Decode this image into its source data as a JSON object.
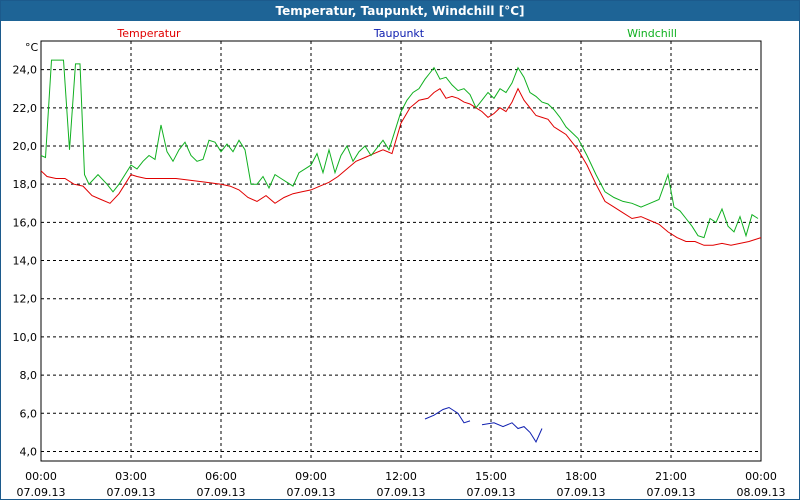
{
  "window": {
    "title": "Temperatur, Taupunkt, Windchill [°C]"
  },
  "colors": {
    "temperatur": "#e00000",
    "taupunkt": "#1020b0",
    "windchill": "#10b020",
    "grid": "#000000",
    "titlebar": "#1e6496"
  },
  "chart_data": {
    "type": "line",
    "title": "Temperatur, Taupunkt, Windchill [°C]",
    "ylabel": "°C",
    "xlabel": "",
    "ylim": [
      3.5,
      25.5
    ],
    "xlim": [
      0,
      24
    ],
    "grid": true,
    "yticks": [
      {
        "value": 4,
        "label": "4,0"
      },
      {
        "value": 6,
        "label": "6,0"
      },
      {
        "value": 8,
        "label": "8,0"
      },
      {
        "value": 10,
        "label": "10,0"
      },
      {
        "value": 12,
        "label": "12,0"
      },
      {
        "value": 14,
        "label": "14,0"
      },
      {
        "value": 16,
        "label": "16,0"
      },
      {
        "value": 18,
        "label": "18,0"
      },
      {
        "value": 20,
        "label": "20,0"
      },
      {
        "value": 22,
        "label": "22,0"
      },
      {
        "value": 24,
        "label": "24,0"
      }
    ],
    "xticks": [
      {
        "value": 0,
        "time": "00:00",
        "date": "07.09.13"
      },
      {
        "value": 3,
        "time": "03:00",
        "date": "07.09.13"
      },
      {
        "value": 6,
        "time": "06:00",
        "date": "07.09.13"
      },
      {
        "value": 9,
        "time": "09:00",
        "date": "07.09.13"
      },
      {
        "value": 12,
        "time": "12:00",
        "date": "07.09.13"
      },
      {
        "value": 15,
        "time": "15:00",
        "date": "07.09.13"
      },
      {
        "value": 18,
        "time": "18:00",
        "date": "07.09.13"
      },
      {
        "value": 21,
        "time": "21:00",
        "date": "07.09.13"
      },
      {
        "value": 24,
        "time": "00:00",
        "date": "08.09.13"
      }
    ],
    "series": [
      {
        "name": "Temperatur",
        "key": "temperatur",
        "color": "#e00000",
        "legend_pos": "left",
        "x": [
          0,
          0.2,
          0.5,
          0.8,
          1.1,
          1.4,
          1.7,
          2.0,
          2.3,
          2.6,
          2.8,
          3.0,
          3.2,
          3.5,
          4.0,
          4.5,
          5.0,
          5.5,
          6.0,
          6.3,
          6.6,
          6.9,
          7.2,
          7.5,
          7.8,
          8.1,
          8.4,
          8.7,
          9.0,
          9.3,
          9.6,
          9.9,
          10.2,
          10.5,
          10.8,
          11.1,
          11.4,
          11.7,
          12.0,
          12.3,
          12.6,
          12.9,
          13.1,
          13.3,
          13.5,
          13.7,
          13.9,
          14.1,
          14.3,
          14.5,
          14.7,
          14.9,
          15.1,
          15.3,
          15.5,
          15.7,
          15.9,
          16.1,
          16.3,
          16.5,
          16.7,
          16.9,
          17.1,
          17.3,
          17.5,
          17.7,
          17.9,
          18.2,
          18.5,
          18.8,
          19.1,
          19.4,
          19.7,
          20.0,
          20.3,
          20.6,
          20.9,
          21.2,
          21.5,
          21.8,
          22.1,
          22.4,
          22.7,
          23.0,
          23.3,
          23.6,
          24.0
        ],
        "values": [
          18.7,
          18.4,
          18.3,
          18.3,
          18.0,
          17.9,
          17.4,
          17.2,
          17.0,
          17.5,
          18.0,
          18.5,
          18.4,
          18.3,
          18.3,
          18.3,
          18.2,
          18.1,
          18.0,
          17.9,
          17.7,
          17.3,
          17.1,
          17.4,
          17.0,
          17.3,
          17.5,
          17.6,
          17.7,
          17.9,
          18.1,
          18.4,
          18.8,
          19.2,
          19.4,
          19.6,
          19.8,
          19.6,
          21.2,
          22.0,
          22.4,
          22.5,
          22.8,
          23.0,
          22.5,
          22.6,
          22.5,
          22.3,
          22.2,
          22.0,
          21.8,
          21.5,
          21.7,
          22.0,
          21.8,
          22.3,
          23.0,
          22.4,
          22.0,
          21.6,
          21.5,
          21.4,
          21.0,
          20.8,
          20.6,
          20.2,
          19.8,
          19.0,
          18.0,
          17.1,
          16.8,
          16.5,
          16.2,
          16.3,
          16.1,
          15.9,
          15.5,
          15.2,
          15.0,
          15.0,
          14.8,
          14.8,
          14.9,
          14.8,
          14.9,
          15.0,
          15.2
        ]
      },
      {
        "name": "Taupunkt",
        "key": "taupunkt",
        "color": "#1020b0",
        "legend_pos": "center",
        "segments": [
          {
            "x": [
              12.8,
              13.1,
              13.4,
              13.6,
              13.9,
              14.1,
              14.3
            ],
            "values": [
              5.7,
              5.9,
              6.2,
              6.3,
              6.0,
              5.5,
              5.6
            ]
          },
          {
            "x": [
              14.7,
              15.1,
              15.4,
              15.7,
              15.9,
              16.1,
              16.3,
              16.5,
              16.7
            ],
            "values": [
              5.4,
              5.5,
              5.3,
              5.5,
              5.2,
              5.3,
              5.0,
              4.5,
              5.2
            ]
          }
        ]
      },
      {
        "name": "Windchill",
        "key": "windchill",
        "color": "#10b020",
        "legend_pos": "right",
        "x": [
          0,
          0.15,
          0.35,
          0.55,
          0.75,
          0.95,
          1.15,
          1.3,
          1.45,
          1.6,
          1.9,
          2.2,
          2.4,
          2.6,
          2.8,
          3.0,
          3.2,
          3.4,
          3.6,
          3.8,
          4.0,
          4.2,
          4.4,
          4.6,
          4.8,
          5.0,
          5.2,
          5.4,
          5.6,
          5.8,
          6.0,
          6.2,
          6.4,
          6.6,
          6.8,
          7.0,
          7.2,
          7.4,
          7.6,
          7.8,
          8.0,
          8.2,
          8.4,
          8.6,
          8.8,
          9.0,
          9.2,
          9.4,
          9.6,
          9.8,
          10.0,
          10.2,
          10.4,
          10.6,
          10.8,
          11.0,
          11.2,
          11.4,
          11.6,
          11.8,
          12.0,
          12.2,
          12.4,
          12.6,
          12.8,
          12.95,
          13.1,
          13.3,
          13.5,
          13.7,
          13.9,
          14.1,
          14.3,
          14.5,
          14.7,
          14.9,
          15.1,
          15.3,
          15.5,
          15.7,
          15.9,
          16.1,
          16.3,
          16.5,
          16.7,
          16.9,
          17.1,
          17.3,
          17.5,
          17.7,
          17.9,
          18.2,
          18.5,
          18.8,
          19.1,
          19.4,
          19.7,
          20.0,
          20.3,
          20.6,
          20.9,
          21.1,
          21.3,
          21.5,
          21.7,
          21.9,
          22.1,
          22.3,
          22.5,
          22.7,
          22.9,
          23.1,
          23.3,
          23.5,
          23.7,
          23.9
        ],
        "values": [
          19.5,
          19.4,
          24.5,
          24.5,
          24.5,
          19.8,
          24.3,
          24.3,
          18.5,
          18.0,
          18.5,
          18.0,
          17.6,
          18.0,
          18.5,
          19.0,
          18.8,
          19.2,
          19.5,
          19.3,
          21.1,
          19.7,
          19.2,
          19.8,
          20.2,
          19.5,
          19.2,
          19.3,
          20.3,
          20.2,
          19.7,
          20.1,
          19.7,
          20.3,
          19.8,
          18.0,
          18.0,
          18.4,
          17.8,
          18.5,
          18.3,
          18.1,
          17.9,
          18.6,
          18.8,
          19.0,
          19.6,
          18.6,
          19.8,
          18.6,
          19.5,
          20.0,
          19.2,
          19.7,
          20.0,
          19.5,
          19.9,
          20.3,
          19.8,
          20.8,
          21.8,
          22.4,
          22.8,
          23.0,
          23.5,
          23.8,
          24.1,
          23.5,
          23.6,
          23.2,
          22.9,
          23.0,
          22.7,
          22.0,
          22.4,
          22.8,
          22.5,
          23.0,
          22.8,
          23.3,
          24.1,
          23.6,
          22.8,
          22.6,
          22.3,
          22.2,
          21.9,
          21.5,
          21.0,
          20.7,
          20.4,
          19.5,
          18.5,
          17.6,
          17.3,
          17.1,
          17.0,
          16.8,
          17.0,
          17.2,
          18.5,
          16.8,
          16.6,
          16.2,
          15.8,
          15.3,
          15.2,
          16.2,
          16.0,
          16.7,
          15.8,
          15.5,
          16.3,
          15.3,
          16.4,
          16.2
        ]
      }
    ]
  }
}
